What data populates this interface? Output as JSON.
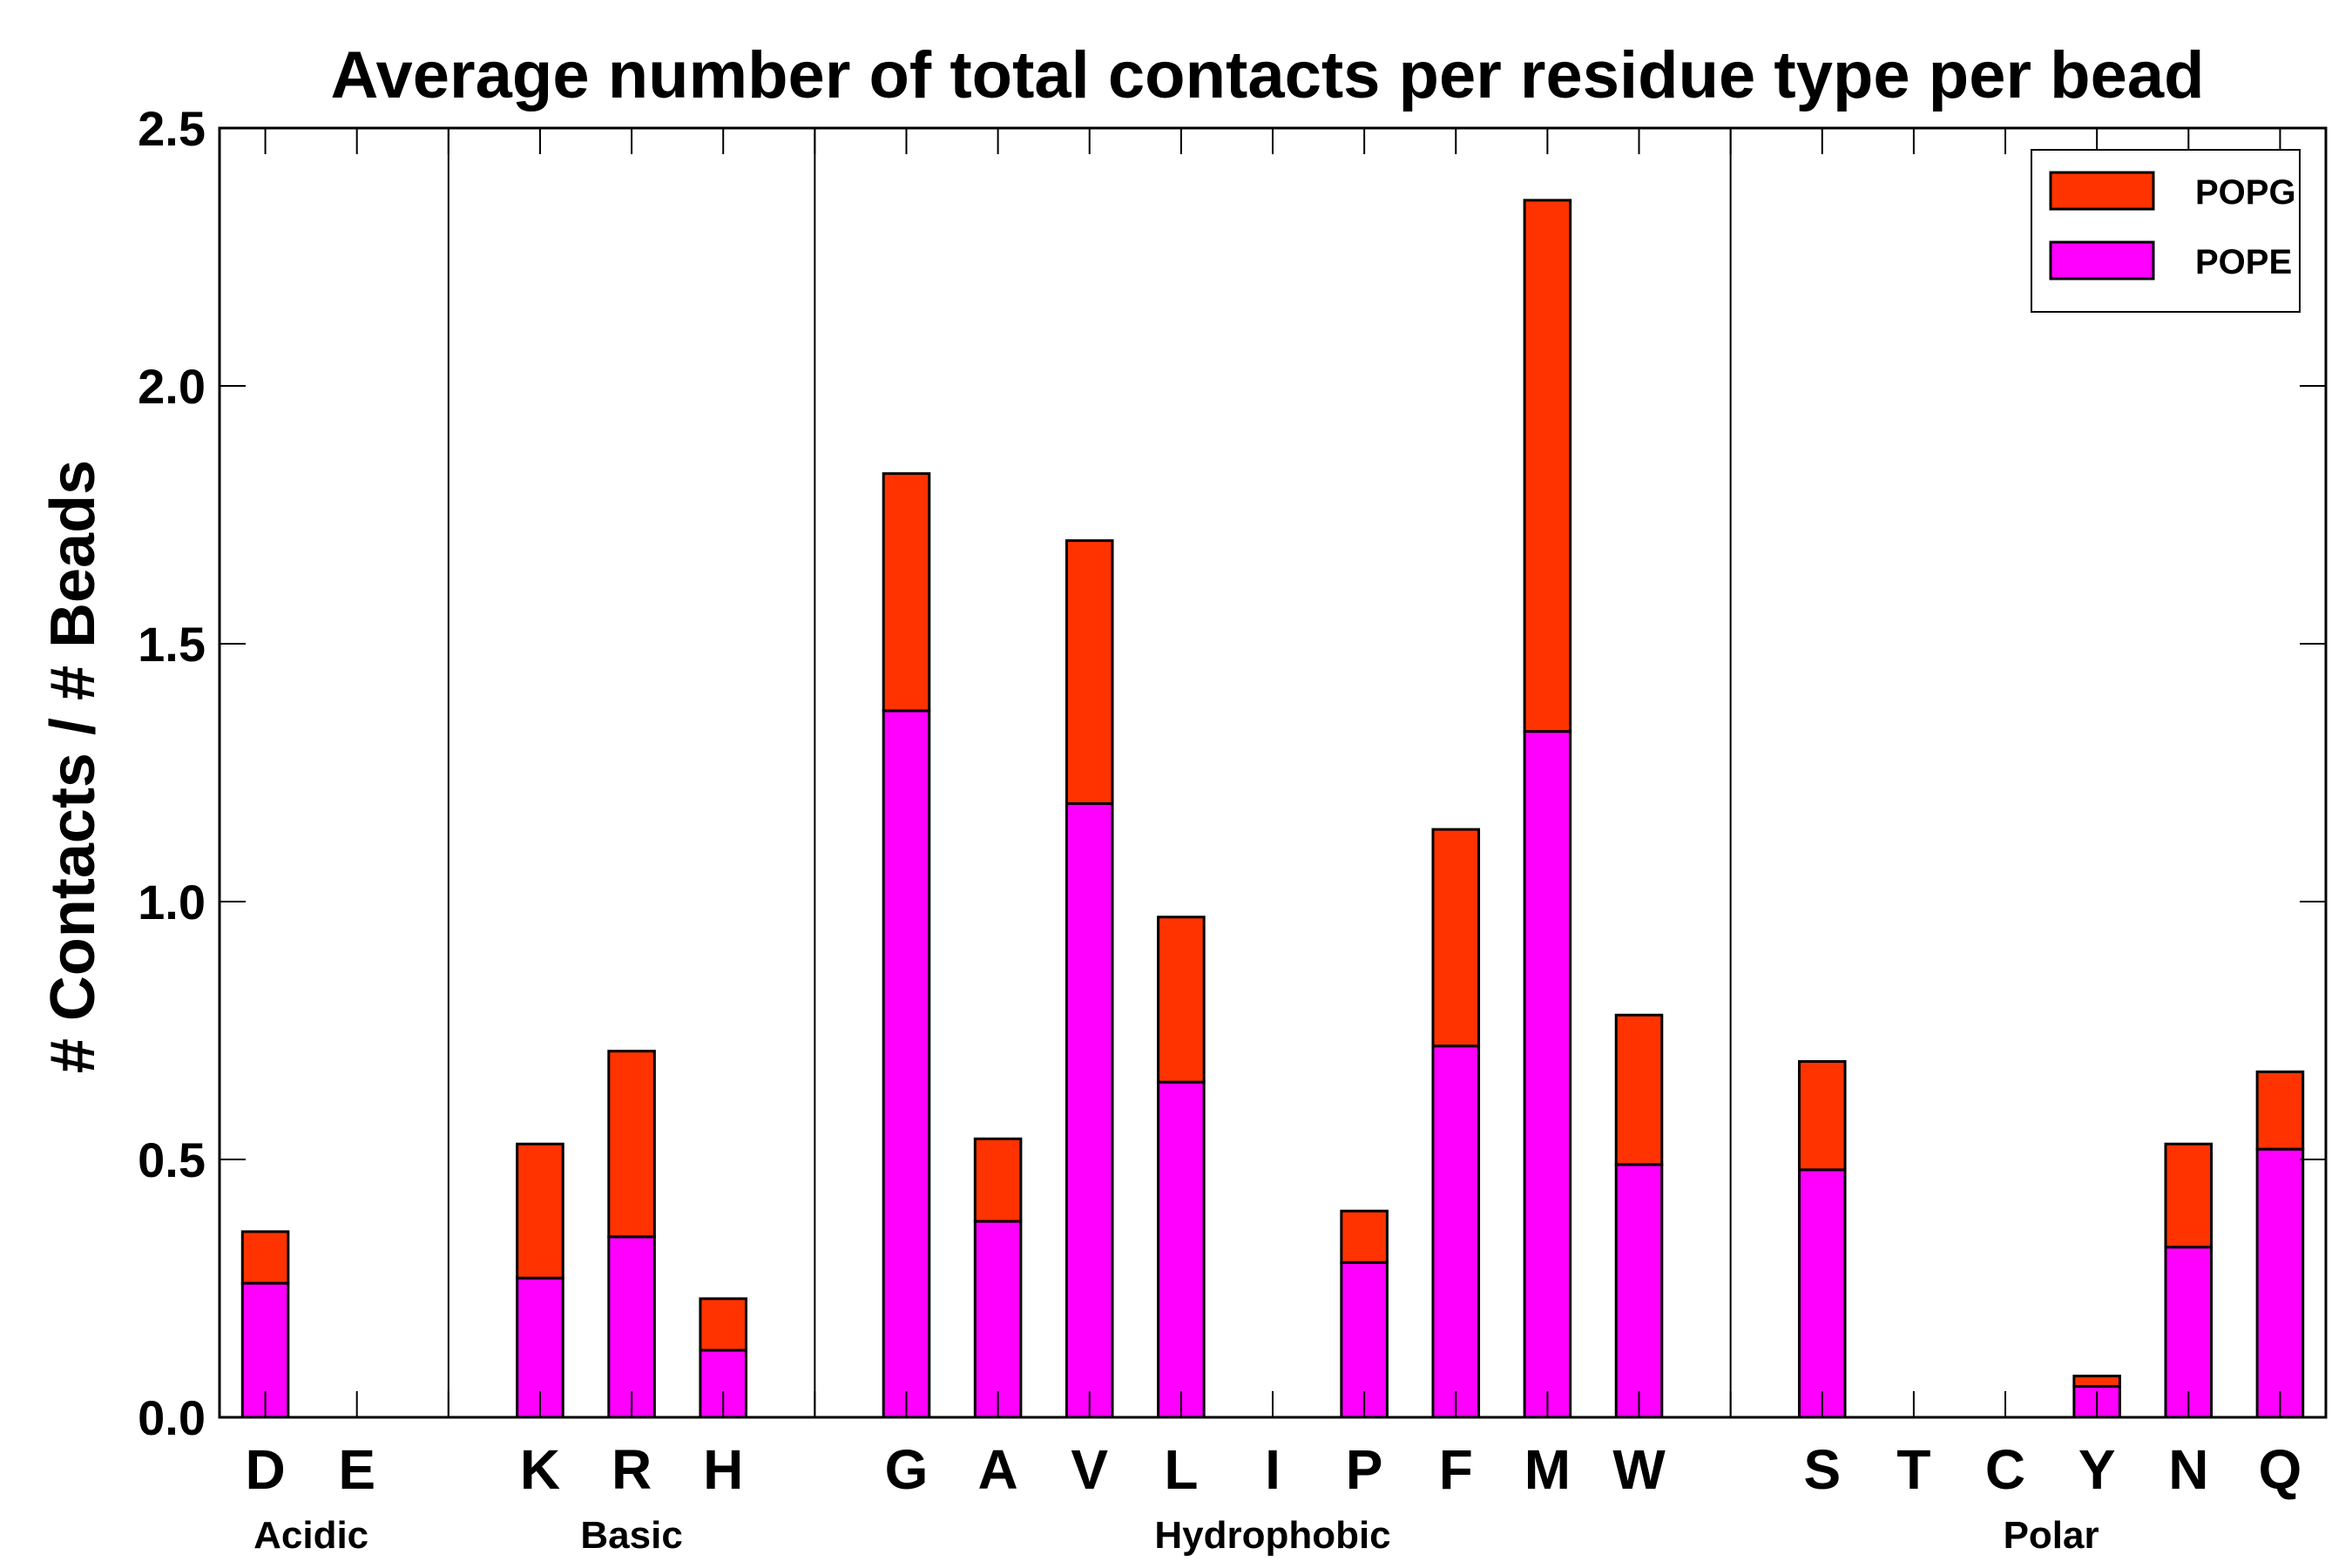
{
  "chart_data": {
    "type": "bar",
    "stacked": true,
    "title": "Average number of total contacts per residue type per bead",
    "xlabel": "",
    "ylabel": "# Contacts / # Beads",
    "ylim": [
      0,
      2.5
    ],
    "yticks": [
      "0.0",
      "0.5",
      "1.0",
      "1.5",
      "2.0",
      "2.5"
    ],
    "ytick_values": [
      0,
      0.5,
      1.0,
      1.5,
      2.0,
      2.5
    ],
    "grid": false,
    "legend_position": "top-right",
    "categories": [
      "D",
      "E",
      "",
      "K",
      "R",
      "H",
      "",
      "G",
      "A",
      "V",
      "L",
      "I",
      "P",
      "F",
      "M",
      "W",
      "",
      "S",
      "T",
      "C",
      "Y",
      "N",
      "Q"
    ],
    "series": [
      {
        "name": "POPE",
        "color": "#ff00ff",
        "values": [
          0.26,
          0,
          0,
          0.27,
          0.35,
          0.13,
          0,
          1.37,
          0.38,
          1.19,
          0.65,
          0,
          0.3,
          0.72,
          1.33,
          0.49,
          0,
          0.48,
          0,
          0,
          0.06,
          0.33,
          0.52
        ]
      },
      {
        "name": "POPG",
        "color": "#ff3300",
        "values": [
          0.1,
          0,
          0,
          0.26,
          0.36,
          0.1,
          0,
          0.46,
          0.16,
          0.51,
          0.32,
          0,
          0.1,
          0.42,
          1.03,
          0.29,
          0,
          0.21,
          0,
          0,
          0.02,
          0.2,
          0.15
        ]
      }
    ],
    "legend_order": [
      "POPG",
      "POPE"
    ],
    "groups": [
      {
        "label": "Acidic",
        "start": 0,
        "end": 1
      },
      {
        "label": "Basic",
        "start": 3,
        "end": 5
      },
      {
        "label": "Hydrophobic",
        "start": 7,
        "end": 15
      },
      {
        "label": "Polar",
        "start": 17,
        "end": 22
      }
    ],
    "separators_after": [
      2,
      6,
      16
    ]
  }
}
